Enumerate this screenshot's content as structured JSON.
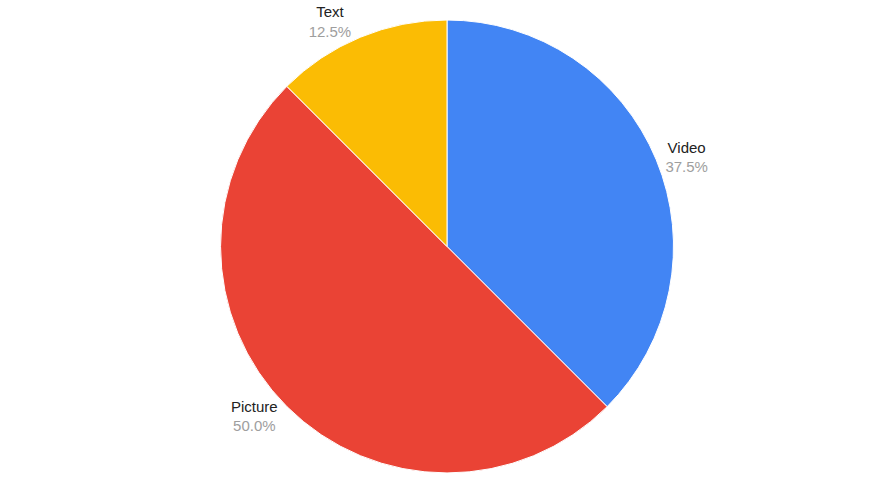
{
  "chart_data": {
    "type": "pie",
    "categories": [
      "Video",
      "Picture",
      "Text"
    ],
    "values": [
      37.5,
      50.0,
      12.5
    ],
    "value_labels": [
      "37.5%",
      "50.0%",
      "12.5%"
    ],
    "colors": [
      "#4285f4",
      "#ea4335",
      "#fbbc04"
    ],
    "data_labels": true
  }
}
